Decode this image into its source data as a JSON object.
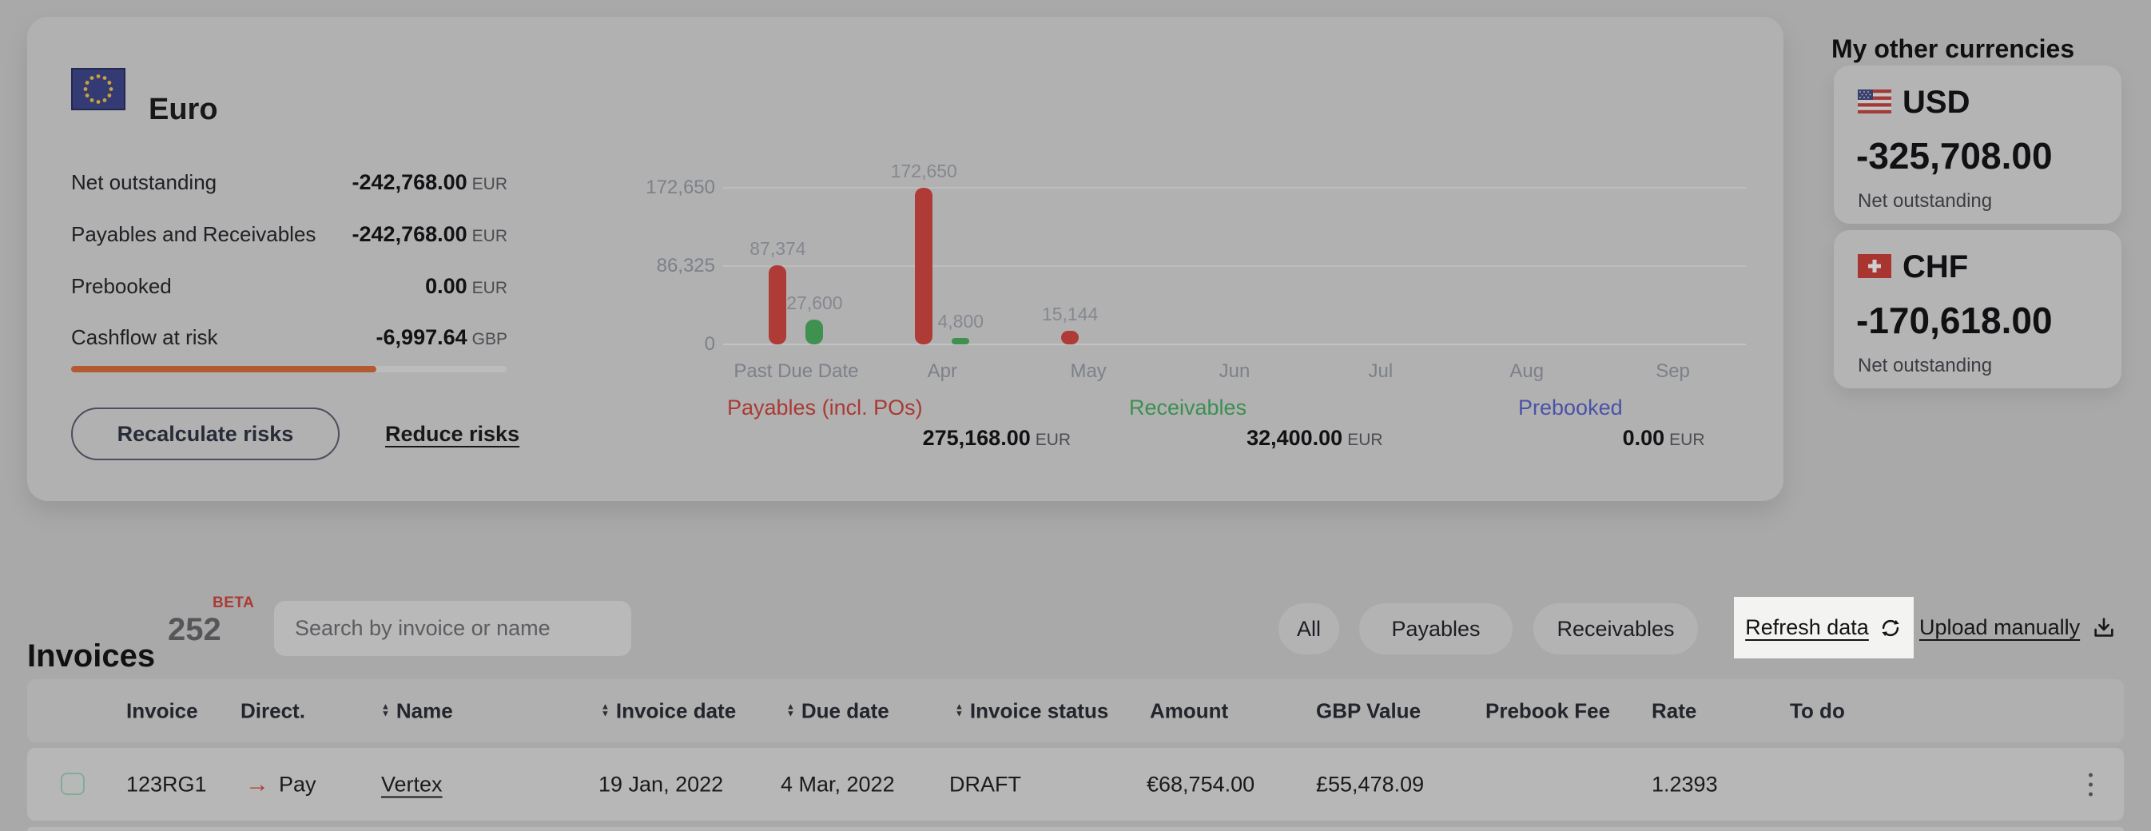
{
  "euro_card": {
    "title": "Euro",
    "stats": [
      {
        "label": "Net outstanding",
        "value": "-242,768.00",
        "currency": "EUR"
      },
      {
        "label": "Payables and Receivables",
        "value": "-242,768.00",
        "currency": "EUR"
      },
      {
        "label": "Prebooked",
        "value": "0.00",
        "currency": "EUR"
      },
      {
        "label": "Cashflow at risk",
        "value": "-6,997.64",
        "currency": "GBP"
      }
    ],
    "risk_progress_pct": 70,
    "progress_color": "#b45a33",
    "buttons": {
      "recalculate": "Recalculate risks",
      "reduce": "Reduce risks"
    },
    "legend": [
      {
        "label": "Payables (incl. POs)",
        "value": "275,168.00",
        "currency": "EUR",
        "color": "#a93a34"
      },
      {
        "label": "Receivables",
        "value": "32,400.00",
        "currency": "EUR",
        "color": "#3c8f52"
      },
      {
        "label": "Prebooked",
        "value": "0.00",
        "currency": "EUR",
        "color": "#4b51a8"
      }
    ]
  },
  "chart_data": {
    "type": "bar",
    "categories": [
      "Past Due Date",
      "Apr",
      "May",
      "Jun",
      "Jul",
      "Aug",
      "Sep"
    ],
    "series": [
      {
        "name": "Payables",
        "color": "#ae3b36",
        "values": [
          87374,
          172650,
          15144,
          null,
          null,
          null,
          null
        ]
      },
      {
        "name": "Receivables",
        "color": "#3f9150",
        "values": [
          27600,
          4800,
          null,
          null,
          null,
          null,
          null
        ]
      }
    ],
    "ylim": [
      0,
      172650
    ],
    "yticks": [
      0,
      86325,
      172650
    ],
    "grid": true,
    "bar_value_labels": true,
    "legend_position": "bottom"
  },
  "other_currencies": {
    "title": "My other currencies",
    "cards": [
      {
        "code": "USD",
        "value": "-325,708.00",
        "caption": "Net outstanding",
        "flag": "us-flag"
      },
      {
        "code": "CHF",
        "value": "-170,618.00",
        "caption": "Net outstanding",
        "flag": "ch-flag"
      }
    ]
  },
  "invoices": {
    "title": "Invoices",
    "count": "252",
    "beta_badge": "BETA",
    "search_placeholder": "Search by invoice or name",
    "filters": [
      {
        "label": "All"
      },
      {
        "label": "Payables"
      },
      {
        "label": "Receivables"
      }
    ],
    "refresh_label": "Refresh data",
    "upload_label": "Upload manually",
    "table": {
      "columns": [
        {
          "label": "Invoice",
          "sortable": false
        },
        {
          "label": "Direct.",
          "sortable": false
        },
        {
          "label": "Name",
          "sortable": true
        },
        {
          "label": "Invoice date",
          "sortable": true
        },
        {
          "label": "Due date",
          "sortable": true
        },
        {
          "label": "Invoice status",
          "sortable": true
        },
        {
          "label": "Amount",
          "sortable": false
        },
        {
          "label": "GBP Value",
          "sortable": false
        },
        {
          "label": "Prebook Fee",
          "sortable": false
        },
        {
          "label": "Rate",
          "sortable": false
        },
        {
          "label": "To do",
          "sortable": false
        }
      ],
      "rows": [
        {
          "invoice": "123RG1",
          "direction": "Pay",
          "name": "Vertex",
          "invoice_date": "19 Jan, 2022",
          "due_date": "4 Mar, 2022",
          "status": "DRAFT",
          "amount": "€68,754.00",
          "gbp_value": "£55,478.09",
          "prebook_fee": "",
          "rate": "1.2393",
          "todo": ""
        }
      ]
    }
  }
}
